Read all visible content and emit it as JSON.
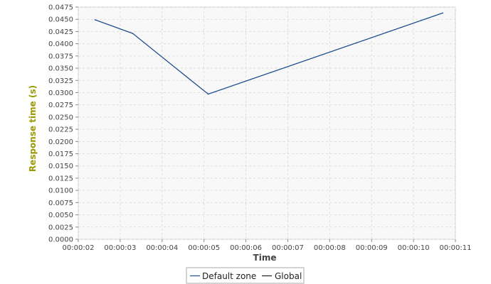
{
  "chart_data": {
    "type": "line",
    "title": "",
    "xlabel": "Time",
    "ylabel": "Response time (s)",
    "x_ticks": [
      "00:00:02",
      "00:00:03",
      "00:00:04",
      "00:00:05",
      "00:00:06",
      "00:00:07",
      "00:00:08",
      "00:00:09",
      "00:00:10",
      "00:00:11"
    ],
    "y_ticks": [
      "0.0000",
      "0.0025",
      "0.0050",
      "0.0075",
      "0.0100",
      "0.0125",
      "0.0150",
      "0.0175",
      "0.0200",
      "0.0225",
      "0.0250",
      "0.0275",
      "0.0300",
      "0.0325",
      "0.0350",
      "0.0375",
      "0.0400",
      "0.0425",
      "0.0450",
      "0.0475"
    ],
    "xlim": [
      "00:00:02",
      "00:00:11"
    ],
    "ylim": [
      0,
      0.0475
    ],
    "grid": true,
    "legend_position": "bottom-center",
    "series": [
      {
        "name": "Default zone",
        "color": "#1f4f8f",
        "points": [
          {
            "x": "00:00:02.4",
            "y": 0.0449
          },
          {
            "x": "00:00:03.3",
            "y": 0.0421
          },
          {
            "x": "00:00:05.1",
            "y": 0.0297
          },
          {
            "x": "00:00:10.7",
            "y": 0.0463
          }
        ]
      },
      {
        "name": "Global",
        "color": "#222222",
        "points": []
      }
    ]
  }
}
